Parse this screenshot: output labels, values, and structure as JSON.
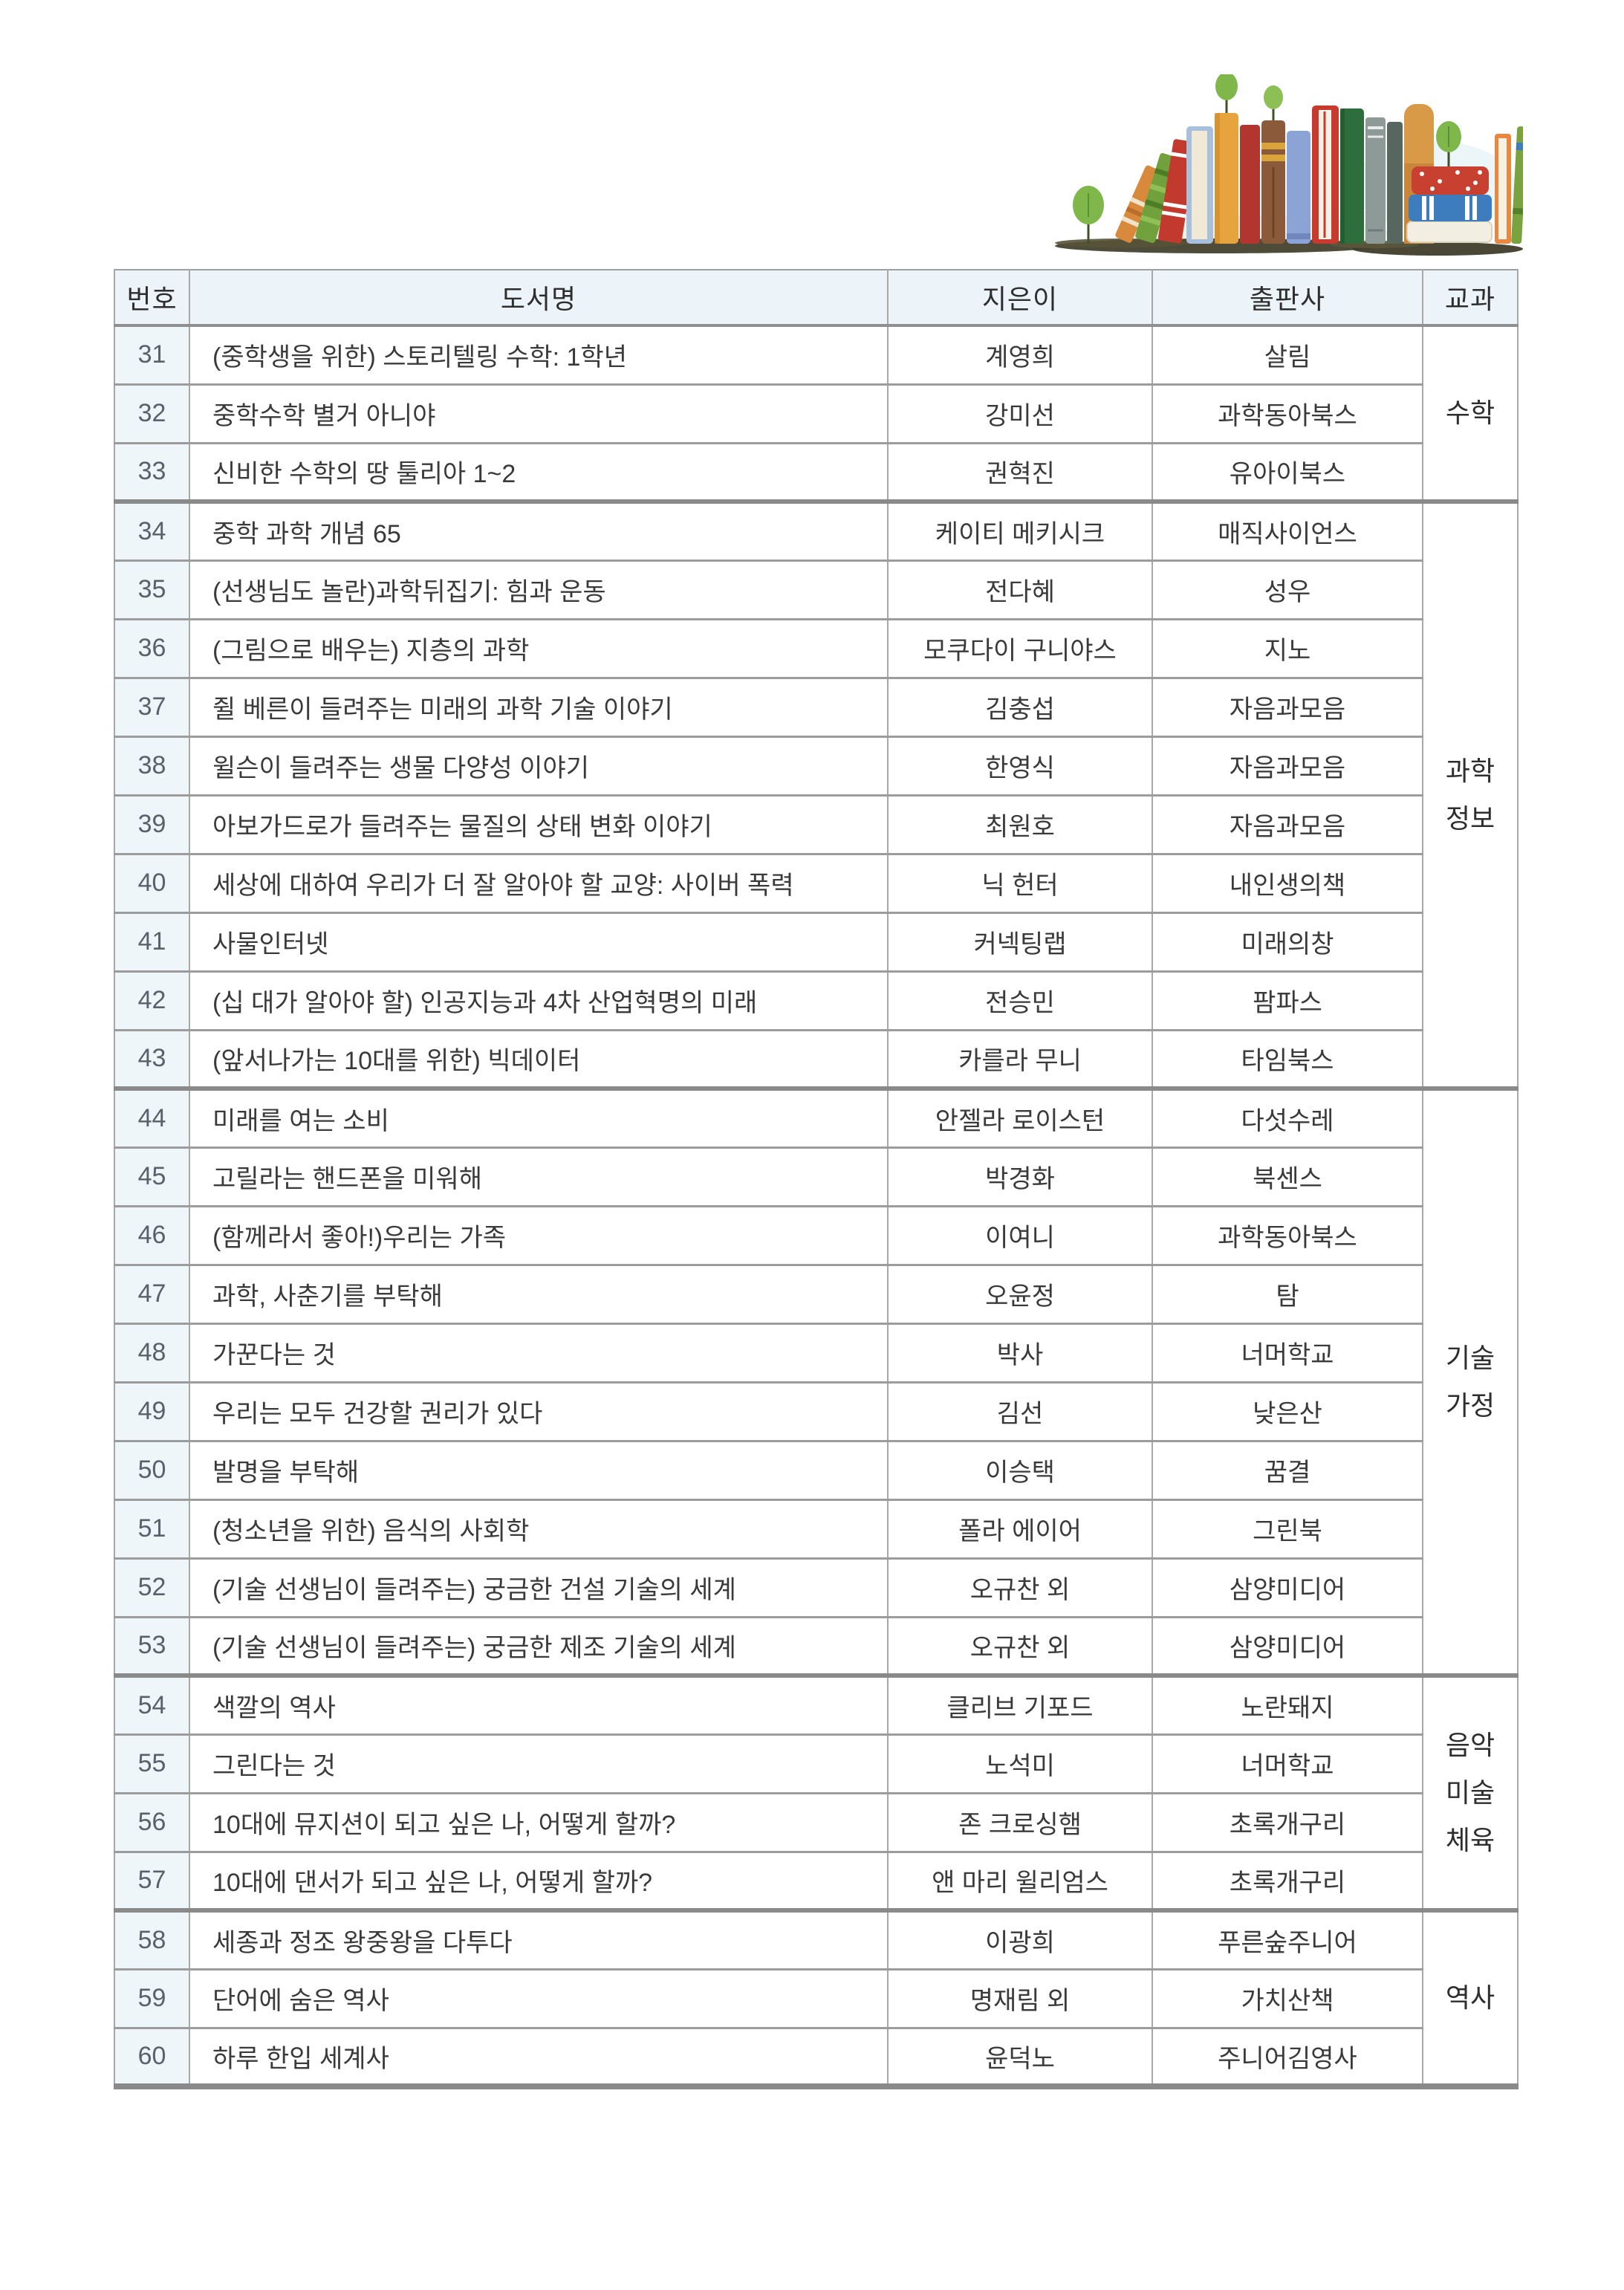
{
  "illustration": {
    "name": "watercolor books on grass with small trees",
    "tree_leaf_color": "#7fb74a",
    "tree_stem_color": "#42502a",
    "grass_color": "#45422f",
    "wash_color": "#dcedf2",
    "book_colors": [
      "#d9893c",
      "#71a13c",
      "#c23a2e",
      "#a9c0dd",
      "#e6a33e",
      "#b23530",
      "#8a5a3b",
      "#8ca3d6",
      "#c8392e",
      "#2e6e3c",
      "#8e9a97",
      "#57675f",
      "#d89a47",
      "#c8402f",
      "#3e7dbd",
      "#f2eee1",
      "#e8873f",
      "#7aa33f"
    ]
  },
  "colors": {
    "header_bg": "#ecf4f9",
    "number_cell_bg": "#eef6fa",
    "grid_line": "#9c9c9c",
    "group_line": "#8a8a8a",
    "text": "#3a3a3a"
  },
  "table": {
    "headers": {
      "no": "번호",
      "title": "도서명",
      "author": "지은이",
      "publisher": "출판사",
      "subject": "교과"
    },
    "rows": [
      {
        "no": "31",
        "title": "(중학생을 위한) 스토리텔링 수학: 1학년",
        "author": "계영희",
        "publisher": "살림"
      },
      {
        "no": "32",
        "title": "중학수학 별거 아니야",
        "author": "강미선",
        "publisher": "과학동아북스"
      },
      {
        "no": "33",
        "title": "신비한 수학의 땅 툴리아 1~2",
        "author": "권혁진",
        "publisher": "유아이북스"
      },
      {
        "no": "34",
        "title": "중학 과학 개념 65",
        "author": "케이티 메키시크",
        "publisher": "매직사이언스"
      },
      {
        "no": "35",
        "title": "(선생님도 놀란)과학뒤집기: 힘과 운동",
        "author": "전다혜",
        "publisher": "성우"
      },
      {
        "no": "36",
        "title": "(그림으로 배우는) 지층의 과학",
        "author": "모쿠다이 구니야스",
        "publisher": "지노"
      },
      {
        "no": "37",
        "title": "쥘 베른이 들려주는 미래의 과학 기술 이야기",
        "author": "김충섭",
        "publisher": "자음과모음"
      },
      {
        "no": "38",
        "title": "윌슨이 들려주는 생물 다양성 이야기",
        "author": "한영식",
        "publisher": "자음과모음"
      },
      {
        "no": "39",
        "title": "아보가드로가 들려주는 물질의 상태 변화 이야기",
        "author": "최원호",
        "publisher": "자음과모음"
      },
      {
        "no": "40",
        "title": "세상에 대하여 우리가 더 잘 알아야 할 교양: 사이버 폭력",
        "author": "닉 헌터",
        "publisher": "내인생의책"
      },
      {
        "no": "41",
        "title": "사물인터넷",
        "author": "커넥팅랩",
        "publisher": "미래의창"
      },
      {
        "no": "42",
        "title": "(십 대가 알아야 할) 인공지능과 4차 산업혁명의 미래",
        "author": "전승민",
        "publisher": "팜파스"
      },
      {
        "no": "43",
        "title": "(앞서나가는 10대를 위한) 빅데이터",
        "author": "카를라 무니",
        "publisher": "타임북스"
      },
      {
        "no": "44",
        "title": "미래를 여는 소비",
        "author": "안젤라 로이스턴",
        "publisher": "다섯수레"
      },
      {
        "no": "45",
        "title": "고릴라는 핸드폰을 미워해",
        "author": "박경화",
        "publisher": "북센스"
      },
      {
        "no": "46",
        "title": "(함께라서 좋아!)우리는 가족",
        "author": "이여니",
        "publisher": "과학동아북스"
      },
      {
        "no": "47",
        "title": "과학, 사춘기를 부탁해",
        "author": "오윤정",
        "publisher": "탐"
      },
      {
        "no": "48",
        "title": "가꾼다는 것",
        "author": "박사",
        "publisher": "너머학교"
      },
      {
        "no": "49",
        "title": "우리는 모두 건강할 권리가 있다",
        "author": "김선",
        "publisher": "낮은산"
      },
      {
        "no": "50",
        "title": "발명을 부탁해",
        "author": "이승택",
        "publisher": "꿈결"
      },
      {
        "no": "51",
        "title": "(청소년을 위한) 음식의 사회학",
        "author": "폴라 에이어",
        "publisher": "그린북"
      },
      {
        "no": "52",
        "title": "(기술 선생님이 들려주는) 궁금한 건설 기술의 세계",
        "author": "오규찬 외",
        "publisher": "삼양미디어"
      },
      {
        "no": "53",
        "title": "(기술 선생님이 들려주는) 궁금한 제조 기술의 세계",
        "author": "오규찬 외",
        "publisher": "삼양미디어"
      },
      {
        "no": "54",
        "title": "색깔의 역사",
        "author": "클리브 기포드",
        "publisher": "노란돼지"
      },
      {
        "no": "55",
        "title": "그린다는 것",
        "author": "노석미",
        "publisher": "너머학교"
      },
      {
        "no": "56",
        "title": "10대에 뮤지션이 되고 싶은 나, 어떻게 할까?",
        "author": "존 크로싱햄",
        "publisher": "초록개구리"
      },
      {
        "no": "57",
        "title": "10대에 댄서가 되고 싶은 나, 어떻게 할까?",
        "author": "앤 마리 윌리엄스",
        "publisher": "초록개구리"
      },
      {
        "no": "58",
        "title": "세종과 정조 왕중왕을 다투다",
        "author": "이광희",
        "publisher": "푸른숲주니어"
      },
      {
        "no": "59",
        "title": "단어에 숨은 역사",
        "author": "명재림 외",
        "publisher": "가치산책"
      },
      {
        "no": "60",
        "title": "하루 한입 세계사",
        "author": "윤덕노",
        "publisher": "주니어김영사"
      }
    ],
    "subject_groups": [
      {
        "lines": [
          "수학"
        ],
        "rows": 3
      },
      {
        "lines": [
          "과학",
          "정보"
        ],
        "rows": 10
      },
      {
        "lines": [
          "기술",
          "가정"
        ],
        "rows": 10
      },
      {
        "lines": [
          "음악",
          "미술",
          "체육"
        ],
        "rows": 4
      },
      {
        "lines": [
          "역사"
        ],
        "rows": 3
      }
    ]
  }
}
